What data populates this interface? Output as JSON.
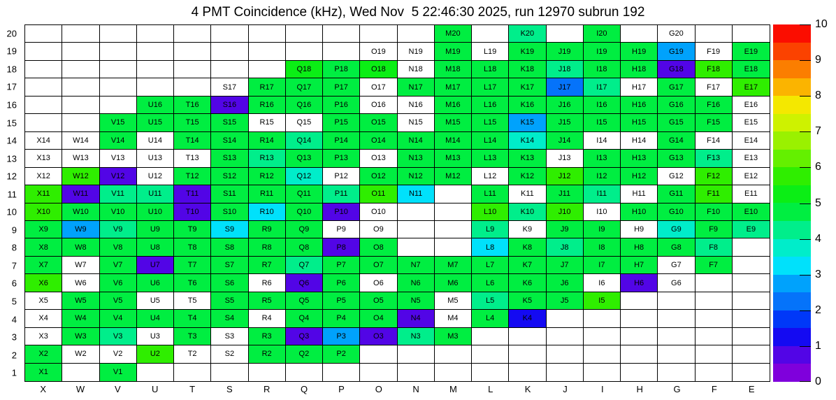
{
  "title": "4 PMT Coincidence (kHz), Wed Nov  5 22:46:30 2025, run 12970 subrun 192",
  "chart_data": {
    "type": "heatmap",
    "title": "4 PMT Coincidence (kHz), Wed Nov  5 22:46:30 2025, run 12970 subrun 192",
    "run": "12970",
    "subrun": "192",
    "timestamp": "Wed Nov  5 22:46:30 2025",
    "x_categories": [
      "X",
      "W",
      "V",
      "U",
      "T",
      "S",
      "R",
      "Q",
      "P",
      "O",
      "N",
      "M",
      "L",
      "K",
      "J",
      "I",
      "H",
      "G",
      "F",
      "E"
    ],
    "y_categories": [
      20,
      19,
      18,
      17,
      16,
      15,
      14,
      13,
      12,
      11,
      10,
      9,
      8,
      7,
      6,
      5,
      4,
      3,
      2,
      1
    ],
    "zlim": [
      0,
      10
    ],
    "legend_position": "right",
    "grid": "on",
    "note_values": "null = no channel (blank cell); 0 = labelled cell drawn white; >0 = rate in kHz estimated from colour scale",
    "values": {
      "20": [
        null,
        null,
        null,
        null,
        null,
        null,
        null,
        null,
        null,
        null,
        null,
        4.7,
        null,
        4.2,
        null,
        4.7,
        null,
        0,
        null,
        null
      ],
      "19": [
        null,
        null,
        null,
        null,
        null,
        null,
        null,
        null,
        null,
        0,
        0,
        4.7,
        0,
        4.7,
        4.7,
        4.7,
        4.7,
        2.7,
        0,
        4.7
      ],
      "18": [
        null,
        null,
        null,
        null,
        null,
        null,
        null,
        5.2,
        4.7,
        5.2,
        0,
        4.7,
        4.7,
        4.7,
        4.2,
        4.7,
        4.7,
        0.7,
        5.7,
        4.7
      ],
      "17": [
        null,
        null,
        null,
        null,
        null,
        0,
        4.7,
        4.7,
        4.7,
        0,
        4.7,
        4.7,
        4.7,
        4.7,
        2.3,
        4.2,
        0,
        4.7,
        0,
        5.7
      ],
      "16": [
        null,
        null,
        null,
        4.7,
        4.7,
        0.7,
        4.7,
        4.7,
        4.7,
        0,
        0,
        4.7,
        4.7,
        4.7,
        4.7,
        4.7,
        4.7,
        4.7,
        4.7,
        0
      ],
      "15": [
        null,
        null,
        4.7,
        4.7,
        4.7,
        4.7,
        0,
        0,
        4.7,
        4.7,
        0,
        4.7,
        4.7,
        2.7,
        4.7,
        4.7,
        4.7,
        4.7,
        4.7,
        0
      ],
      "14": [
        0,
        0,
        4.7,
        0,
        4.7,
        4.7,
        4.7,
        4.2,
        4.7,
        4.7,
        4.7,
        4.7,
        4.7,
        3.7,
        4.7,
        0,
        0,
        4.7,
        0,
        0
      ],
      "13": [
        0,
        0,
        0,
        0,
        0,
        4.7,
        4.2,
        4.7,
        4.7,
        0,
        4.7,
        4.7,
        4.7,
        4.7,
        0,
        4.7,
        4.7,
        4.7,
        4.2,
        0
      ],
      "12": [
        0,
        5.7,
        0.7,
        0,
        4.7,
        4.7,
        4.7,
        3.7,
        0,
        4.7,
        4.7,
        4.7,
        0,
        4.7,
        5.7,
        4.7,
        4.7,
        0,
        5.7,
        0
      ],
      "11": [
        5.7,
        0.7,
        4.2,
        4.2,
        0.7,
        4.7,
        4.7,
        4.7,
        4.2,
        5.7,
        3.2,
        null,
        4.7,
        0,
        4.7,
        4.2,
        0,
        4.7,
        5.7,
        0
      ],
      "10": [
        5.7,
        4.7,
        4.7,
        4.7,
        0.7,
        4.7,
        3.2,
        4.7,
        0.7,
        0,
        null,
        null,
        5.7,
        4.2,
        5.7,
        0,
        4.7,
        4.7,
        4.7,
        4.7
      ],
      "9": [
        4.7,
        2.7,
        4.2,
        4.7,
        4.7,
        3.2,
        4.7,
        4.7,
        0,
        0,
        null,
        null,
        4.2,
        0,
        4.7,
        4.7,
        0,
        3.7,
        4.7,
        4.2
      ],
      "8": [
        4.7,
        4.7,
        4.7,
        4.7,
        4.7,
        4.7,
        4.7,
        4.7,
        0.7,
        4.7,
        null,
        null,
        3.2,
        4.7,
        4.2,
        4.7,
        4.7,
        4.7,
        4.2,
        null
      ],
      "7": [
        4.7,
        0,
        4.7,
        0.7,
        4.7,
        4.7,
        4.7,
        4.2,
        4.7,
        4.7,
        4.7,
        4.7,
        4.7,
        4.7,
        4.7,
        4.7,
        4.7,
        0,
        4.7,
        null
      ],
      "6": [
        5.7,
        0,
        4.7,
        4.7,
        4.7,
        4.7,
        0,
        0.7,
        4.7,
        0,
        4.7,
        4.7,
        4.7,
        4.7,
        4.7,
        0,
        0.7,
        0,
        null,
        null
      ],
      "5": [
        0,
        4.7,
        4.7,
        0,
        0,
        4.7,
        4.7,
        4.7,
        4.7,
        4.7,
        4.7,
        0,
        4.2,
        4.7,
        4.7,
        5.7,
        null,
        null,
        null,
        null
      ],
      "4": [
        0,
        4.7,
        4.7,
        4.7,
        4.7,
        4.7,
        0,
        4.7,
        4.7,
        4.7,
        0.7,
        0,
        4.7,
        1.2,
        null,
        null,
        null,
        null,
        null,
        null
      ],
      "3": [
        0,
        4.7,
        4.2,
        0,
        4.7,
        0,
        4.7,
        0.7,
        2.7,
        0.7,
        4.2,
        4.7,
        null,
        null,
        null,
        null,
        null,
        null,
        null,
        null
      ],
      "2": [
        4.7,
        0,
        0,
        5.7,
        0,
        0,
        4.7,
        4.7,
        4.7,
        null,
        null,
        null,
        null,
        null,
        null,
        null,
        null,
        null,
        null,
        null
      ],
      "1": [
        4.7,
        null,
        4.7,
        null,
        null,
        null,
        null,
        null,
        null,
        null,
        null,
        null,
        null,
        null,
        null,
        null,
        null,
        null,
        null,
        null
      ]
    },
    "colorbar": {
      "min": 0,
      "max": 10,
      "tick_labels": [
        "0",
        "1",
        "2",
        "3",
        "4",
        "5",
        "6",
        "7",
        "8",
        "9",
        "10"
      ],
      "bands_bottom_to_top": [
        "#7f00dc",
        "#5205e6",
        "#140af2",
        "#0038f8",
        "#0573fa",
        "#00a2fc",
        "#00e1fb",
        "#00edca",
        "#00ee8b",
        "#00ee41",
        "#0bee15",
        "#2fee00",
        "#64f000",
        "#9af100",
        "#cef200",
        "#f4e800",
        "#fbb400",
        "#fb7e00",
        "#fb4200",
        "#fb0d00"
      ]
    }
  }
}
